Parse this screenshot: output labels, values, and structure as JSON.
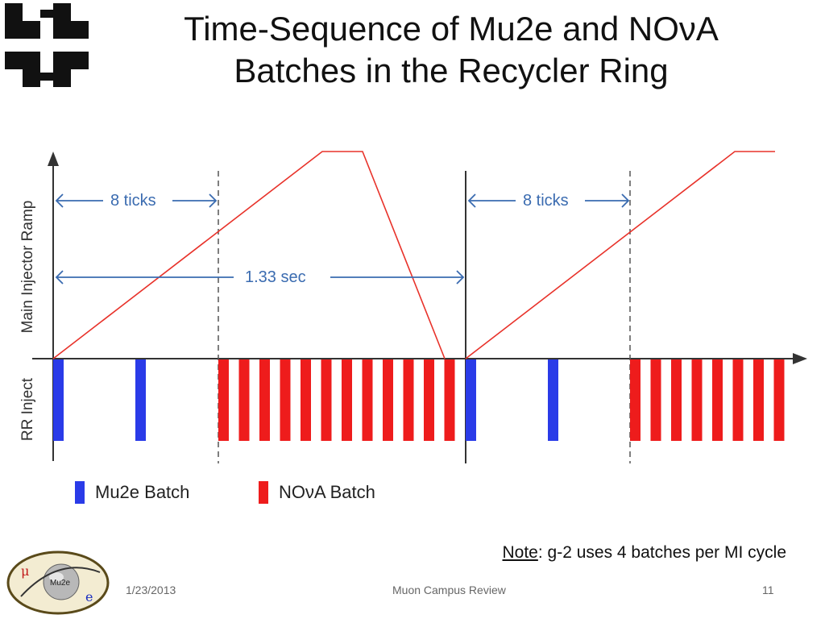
{
  "slide": {
    "title_line1": "Time-Sequence of Mu2e and NOνA",
    "title_line2": "Batches in the Recycler Ring"
  },
  "diagram": {
    "y_axis_top_label": "Main Injector Ramp",
    "y_axis_bottom_label": "RR Inject",
    "annotation_8ticks_left": "8 ticks",
    "annotation_8ticks_right": "8 ticks",
    "annotation_cycle": "1.33 sec",
    "legend": [
      {
        "label": "Mu2e Batch",
        "color": "#2a3be8"
      },
      {
        "label": "NOνA Batch",
        "color": "#ee1c1c"
      }
    ]
  },
  "note": {
    "prefix": "Note",
    "text": ": g-2 uses 4 batches per MI cycle"
  },
  "footer": {
    "date": "1/23/2013",
    "center": "Muon Campus Review",
    "page": "11"
  },
  "colors": {
    "ramp": "#e8322a",
    "arrow": "#3a6bb0",
    "mu2e": "#2a3be8",
    "nova": "#ee1c1c"
  }
}
